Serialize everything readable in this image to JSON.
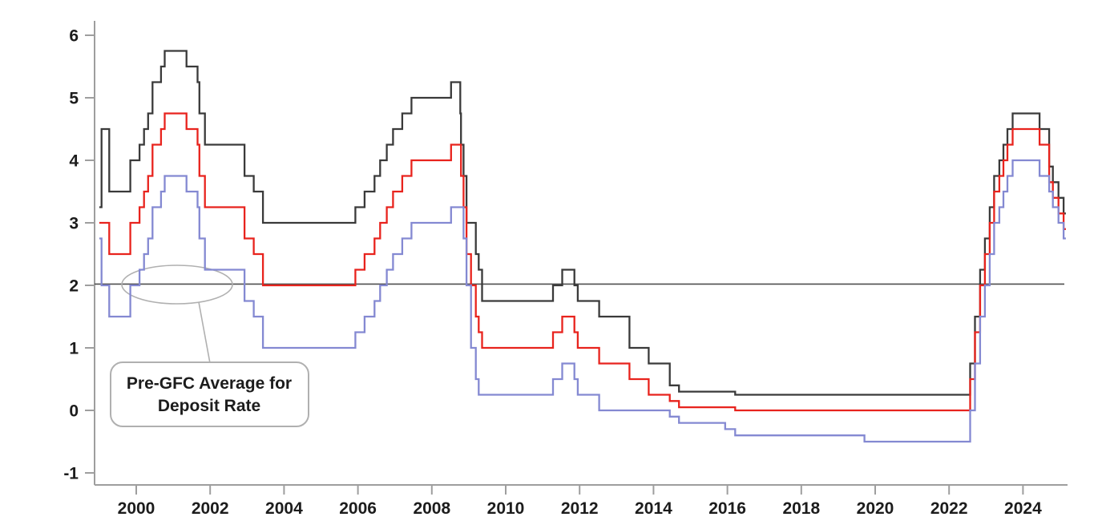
{
  "chart_data": {
    "type": "line",
    "title": "",
    "xlabel": "",
    "ylabel": "",
    "grid": "off",
    "legend": "none",
    "x_axis": {
      "ticks": [
        2000,
        2002,
        2004,
        2006,
        2008,
        2010,
        2012,
        2014,
        2016,
        2018,
        2020,
        2022,
        2024
      ],
      "range": [
        1998.85,
        2025.16
      ]
    },
    "y_axis": {
      "ticks": [
        6,
        5,
        4,
        3,
        2,
        1,
        0,
        -1
      ],
      "range": [
        -1.2,
        6.2
      ]
    },
    "reference_line": {
      "value": 2.02
    },
    "annotation": {
      "text_line1": "Pre-GFC Average for",
      "text_line2": "Deposit Rate"
    },
    "x_data_start": 1999.0,
    "x_data_end": 2025.16,
    "series": [
      {
        "name": "black",
        "color": "#3a3a3a",
        "points": [
          [
            1999.0,
            3.25
          ],
          [
            1999.06,
            4.5
          ],
          [
            1999.27,
            3.5
          ],
          [
            1999.84,
            4.0
          ],
          [
            2000.09,
            4.25
          ],
          [
            2000.21,
            4.5
          ],
          [
            2000.32,
            4.75
          ],
          [
            2000.44,
            5.25
          ],
          [
            2000.67,
            5.5
          ],
          [
            2000.77,
            5.75
          ],
          [
            2001.36,
            5.5
          ],
          [
            2001.66,
            5.25
          ],
          [
            2001.71,
            4.75
          ],
          [
            2001.86,
            4.25
          ],
          [
            2002.93,
            3.75
          ],
          [
            2003.18,
            3.5
          ],
          [
            2003.43,
            3.0
          ],
          [
            2005.93,
            3.25
          ],
          [
            2006.18,
            3.5
          ],
          [
            2006.45,
            3.75
          ],
          [
            2006.6,
            4.0
          ],
          [
            2006.78,
            4.25
          ],
          [
            2006.95,
            4.5
          ],
          [
            2007.2,
            4.75
          ],
          [
            2007.45,
            5.0
          ],
          [
            2008.52,
            5.25
          ],
          [
            2008.77,
            4.75
          ],
          [
            2008.79,
            4.25
          ],
          [
            2008.86,
            3.75
          ],
          [
            2008.94,
            3.0
          ],
          [
            2009.19,
            2.5
          ],
          [
            2009.27,
            2.25
          ],
          [
            2009.36,
            1.75
          ],
          [
            2011.28,
            2.0
          ],
          [
            2011.53,
            2.25
          ],
          [
            2011.86,
            2.0
          ],
          [
            2011.95,
            1.75
          ],
          [
            2012.53,
            1.5
          ],
          [
            2013.35,
            1.0
          ],
          [
            2013.87,
            0.75
          ],
          [
            2014.44,
            0.4
          ],
          [
            2014.69,
            0.3
          ],
          [
            2016.21,
            0.25
          ],
          [
            2022.57,
            0.75
          ],
          [
            2022.7,
            1.5
          ],
          [
            2022.84,
            2.25
          ],
          [
            2022.97,
            2.75
          ],
          [
            2023.1,
            3.25
          ],
          [
            2023.22,
            3.75
          ],
          [
            2023.36,
            4.0
          ],
          [
            2023.47,
            4.25
          ],
          [
            2023.58,
            4.5
          ],
          [
            2023.72,
            4.75
          ],
          [
            2024.45,
            4.5
          ],
          [
            2024.71,
            3.9
          ],
          [
            2024.81,
            3.65
          ],
          [
            2024.96,
            3.4
          ],
          [
            2025.1,
            3.15
          ]
        ]
      },
      {
        "name": "red",
        "color": "#e8231d",
        "points": [
          [
            1999.0,
            3.0
          ],
          [
            1999.27,
            2.5
          ],
          [
            1999.84,
            3.0
          ],
          [
            2000.09,
            3.25
          ],
          [
            2000.21,
            3.5
          ],
          [
            2000.32,
            3.75
          ],
          [
            2000.44,
            4.25
          ],
          [
            2000.67,
            4.5
          ],
          [
            2000.77,
            4.75
          ],
          [
            2001.36,
            4.5
          ],
          [
            2001.66,
            4.25
          ],
          [
            2001.71,
            3.75
          ],
          [
            2001.86,
            3.25
          ],
          [
            2002.93,
            2.75
          ],
          [
            2003.18,
            2.5
          ],
          [
            2003.43,
            2.0
          ],
          [
            2005.93,
            2.25
          ],
          [
            2006.18,
            2.5
          ],
          [
            2006.45,
            2.75
          ],
          [
            2006.6,
            3.0
          ],
          [
            2006.78,
            3.25
          ],
          [
            2006.95,
            3.5
          ],
          [
            2007.2,
            3.75
          ],
          [
            2007.45,
            4.0
          ],
          [
            2008.52,
            4.25
          ],
          [
            2008.79,
            3.75
          ],
          [
            2008.86,
            3.25
          ],
          [
            2008.94,
            2.5
          ],
          [
            2009.06,
            2.0
          ],
          [
            2009.19,
            1.5
          ],
          [
            2009.27,
            1.25
          ],
          [
            2009.36,
            1.0
          ],
          [
            2011.28,
            1.25
          ],
          [
            2011.53,
            1.5
          ],
          [
            2011.86,
            1.25
          ],
          [
            2011.95,
            1.0
          ],
          [
            2012.53,
            0.75
          ],
          [
            2013.35,
            0.5
          ],
          [
            2013.87,
            0.25
          ],
          [
            2014.44,
            0.15
          ],
          [
            2014.69,
            0.05
          ],
          [
            2016.21,
            0.0
          ],
          [
            2022.57,
            0.5
          ],
          [
            2022.7,
            1.25
          ],
          [
            2022.84,
            2.0
          ],
          [
            2022.97,
            2.5
          ],
          [
            2023.1,
            3.0
          ],
          [
            2023.22,
            3.5
          ],
          [
            2023.36,
            3.75
          ],
          [
            2023.47,
            4.0
          ],
          [
            2023.58,
            4.25
          ],
          [
            2023.72,
            4.5
          ],
          [
            2024.45,
            4.25
          ],
          [
            2024.71,
            3.65
          ],
          [
            2024.81,
            3.4
          ],
          [
            2024.96,
            3.15
          ],
          [
            2025.1,
            2.9
          ]
        ]
      },
      {
        "name": "blue",
        "color": "#8489d2",
        "points": [
          [
            1999.0,
            2.75
          ],
          [
            1999.06,
            2.0
          ],
          [
            1999.27,
            1.5
          ],
          [
            1999.84,
            2.0
          ],
          [
            2000.09,
            2.25
          ],
          [
            2000.21,
            2.5
          ],
          [
            2000.32,
            2.75
          ],
          [
            2000.44,
            3.25
          ],
          [
            2000.67,
            3.5
          ],
          [
            2000.77,
            3.75
          ],
          [
            2001.36,
            3.5
          ],
          [
            2001.66,
            3.25
          ],
          [
            2001.71,
            2.75
          ],
          [
            2001.86,
            2.25
          ],
          [
            2002.93,
            1.75
          ],
          [
            2003.18,
            1.5
          ],
          [
            2003.43,
            1.0
          ],
          [
            2005.93,
            1.25
          ],
          [
            2006.18,
            1.5
          ],
          [
            2006.45,
            1.75
          ],
          [
            2006.6,
            2.0
          ],
          [
            2006.78,
            2.25
          ],
          [
            2006.95,
            2.5
          ],
          [
            2007.2,
            2.75
          ],
          [
            2007.45,
            3.0
          ],
          [
            2008.52,
            3.25
          ],
          [
            2008.86,
            2.75
          ],
          [
            2008.94,
            2.0
          ],
          [
            2009.06,
            1.0
          ],
          [
            2009.19,
            0.5
          ],
          [
            2009.27,
            0.25
          ],
          [
            2011.28,
            0.5
          ],
          [
            2011.53,
            0.75
          ],
          [
            2011.86,
            0.5
          ],
          [
            2011.95,
            0.25
          ],
          [
            2012.53,
            0.0
          ],
          [
            2014.44,
            -0.1
          ],
          [
            2014.69,
            -0.2
          ],
          [
            2015.94,
            -0.3
          ],
          [
            2016.21,
            -0.4
          ],
          [
            2019.71,
            -0.5
          ],
          [
            2022.57,
            0.0
          ],
          [
            2022.7,
            0.75
          ],
          [
            2022.84,
            1.5
          ],
          [
            2022.97,
            2.0
          ],
          [
            2023.1,
            2.5
          ],
          [
            2023.22,
            3.0
          ],
          [
            2023.36,
            3.25
          ],
          [
            2023.47,
            3.5
          ],
          [
            2023.58,
            3.75
          ],
          [
            2023.72,
            4.0
          ],
          [
            2024.45,
            3.75
          ],
          [
            2024.71,
            3.5
          ],
          [
            2024.81,
            3.25
          ],
          [
            2024.96,
            3.0
          ],
          [
            2025.1,
            2.75
          ]
        ]
      }
    ]
  },
  "colors": {
    "background": "#ffffff",
    "axis": "#9e9e9e",
    "tick_label": "#1c1c1c",
    "reference_line": "#4f4f4f",
    "annotation_outline": "#b0b0b0",
    "annotation_box_fill": "#ffffff",
    "annotation_text": "#1c1c1c",
    "series_black": "#3a3a3a",
    "series_red": "#e8231d",
    "series_blue": "#8489d2"
  }
}
